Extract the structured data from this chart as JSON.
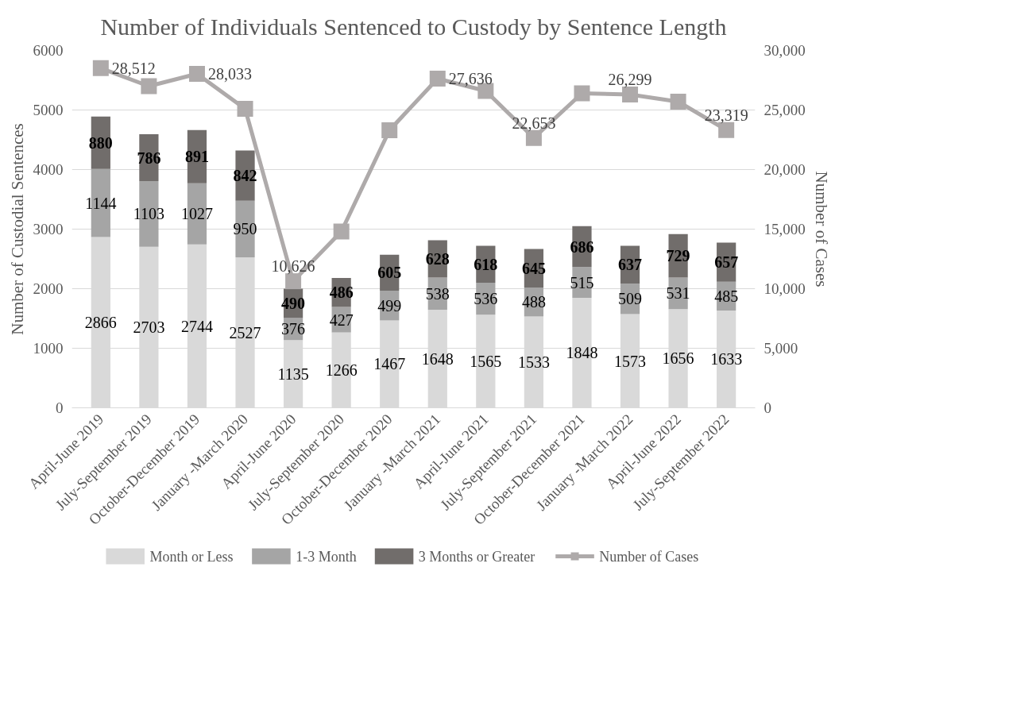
{
  "chart_data": {
    "type": "bar",
    "stacked": true,
    "title": "Number of Individuals Sentenced to Custody by Sentence Length",
    "ylabel": "Number of Custodial Sentences",
    "y2label": "Number of Cases",
    "categories": [
      "April-June 2019",
      "July-September 2019",
      "October-December 2019",
      "January -March 2020",
      "April-June 2020",
      "July-September 2020",
      "October-December 2020",
      "January -March 2021",
      "April-June 2021",
      "July-September 2021",
      "October-December 2021",
      "January -March 2022",
      "April-June 2022",
      "July-September 2022"
    ],
    "series": [
      {
        "name": "Month or Less",
        "color": "#d9d9d9",
        "values": [
          2866,
          2703,
          2744,
          2527,
          1135,
          1266,
          1467,
          1648,
          1565,
          1533,
          1848,
          1573,
          1656,
          1633
        ],
        "value_labels": [
          "2866",
          "2703",
          "2744",
          "2527",
          "1135",
          "1266",
          "1467",
          "1648",
          "1565",
          "1533",
          "1848",
          "1573",
          "1656",
          "1633"
        ]
      },
      {
        "name": "1-3 Month",
        "color": "#a5a5a5",
        "values": [
          1144,
          1103,
          1027,
          950,
          376,
          427,
          499,
          538,
          536,
          488,
          515,
          509,
          531,
          485
        ],
        "value_labels": [
          "1144",
          "1103",
          "1027",
          "950",
          "376",
          "427",
          "499",
          "538",
          "536",
          "488",
          "515",
          "509",
          "531",
          "485"
        ]
      },
      {
        "name": "3 Months or Greater",
        "color": "#716d6b",
        "values": [
          880,
          786,
          891,
          842,
          490,
          486,
          605,
          628,
          618,
          645,
          686,
          637,
          729,
          657
        ],
        "value_labels": [
          "880",
          "786",
          "891",
          "842",
          "490",
          "486",
          "605",
          "628",
          "618",
          "645",
          "686",
          "637",
          "729",
          "657"
        ]
      },
      {
        "name": "Number of Cases",
        "type": "line",
        "axis": "y2",
        "marker": "square",
        "color": "#aeaaaa",
        "values": [
          28512,
          27000,
          28033,
          25100,
          10626,
          14800,
          23300,
          27636,
          26600,
          22653,
          26400,
          26299,
          25700,
          23319
        ],
        "value_labels": [
          "28,512",
          null,
          "28,033",
          null,
          "10,626",
          null,
          null,
          "27,636",
          null,
          "22,653",
          null,
          "26,299",
          null,
          "23,319"
        ]
      }
    ],
    "ylim": [
      0,
      6000
    ],
    "yticks": [
      0,
      1000,
      2000,
      3000,
      4000,
      5000,
      6000
    ],
    "y2lim": [
      0,
      30000
    ],
    "y2ticks": [
      {
        "value": 0,
        "label": "0"
      },
      {
        "value": 5000,
        "label": "5,000"
      },
      {
        "value": 10000,
        "label": "10,000"
      },
      {
        "value": 15000,
        "label": "15,000"
      },
      {
        "value": 20000,
        "label": "20,000"
      },
      {
        "value": 25000,
        "label": "25,000"
      },
      {
        "value": 30000,
        "label": "30,000"
      }
    ],
    "grid": "y",
    "legend": "bottom"
  }
}
